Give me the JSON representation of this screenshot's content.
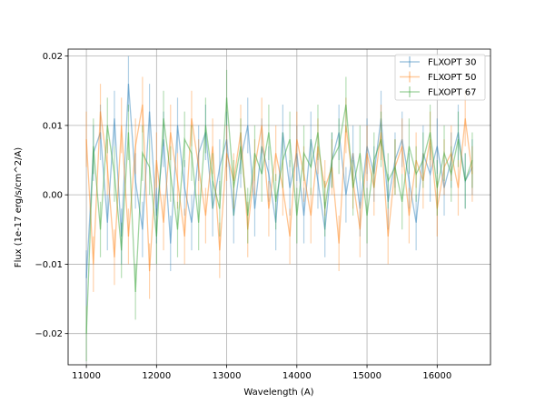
{
  "chart_data": {
    "type": "line",
    "title": "",
    "xlabel": "Wavelength (A)",
    "ylabel": "Flux (1e-17 erg/s/cm^2/A)",
    "xlim": [
      10740,
      16760
    ],
    "ylim": [
      -0.0245,
      0.021
    ],
    "xticks": [
      11000,
      12000,
      13000,
      14000,
      15000,
      16000
    ],
    "xtick_labels": [
      "11000",
      "12000",
      "13000",
      "14000",
      "15000",
      "16000"
    ],
    "yticks": [
      -0.02,
      -0.01,
      0.0,
      0.01,
      0.02
    ],
    "ytick_labels": [
      "−0.02",
      "−0.01",
      "0.00",
      "0.01",
      "0.02"
    ],
    "grid": true,
    "legend_position": "top-right",
    "x_start": 11000,
    "x_step": 100,
    "series": [
      {
        "name": "FLXOPT 30",
        "color": "#1f77b4",
        "yerr": 0.004,
        "values": [
          -0.012,
          0.006,
          0.009,
          -0.004,
          0.011,
          -0.006,
          0.016,
          0.002,
          -0.005,
          0.012,
          -0.003,
          0.008,
          -0.007,
          0.01,
          0.001,
          -0.004,
          0.006,
          0.009,
          -0.002,
          0.004,
          0.008,
          -0.003,
          0.005,
          0.01,
          -0.002,
          0.007,
          0.003,
          -0.004,
          0.009,
          0.001,
          0.006,
          -0.003,
          0.008,
          0.002,
          -0.005,
          0.005,
          0.009,
          0.0,
          0.006,
          -0.002,
          0.007,
          0.003,
          0.011,
          -0.001,
          0.005,
          0.008,
          0.002,
          -0.004,
          0.006,
          0.003,
          0.007,
          0.001,
          0.005,
          0.009,
          0.002,
          0.004
        ]
      },
      {
        "name": "FLXOPT 50",
        "color": "#ff7f0e",
        "yerr": 0.004,
        "values": [
          0.008,
          -0.01,
          0.012,
          0.004,
          -0.009,
          0.01,
          -0.006,
          0.007,
          0.013,
          -0.011,
          0.005,
          -0.004,
          0.009,
          0.002,
          -0.006,
          0.011,
          0.004,
          -0.003,
          0.007,
          -0.008,
          0.006,
          0.002,
          0.009,
          -0.005,
          0.004,
          0.01,
          -0.002,
          0.006,
          0.001,
          -0.006,
          0.008,
          0.003,
          -0.003,
          0.007,
          0.001,
          0.004,
          -0.007,
          0.01,
          0.002,
          -0.005,
          0.006,
          0.001,
          0.009,
          -0.006,
          0.004,
          0.007,
          -0.003,
          0.005,
          0.002,
          0.008,
          -0.002,
          0.004,
          0.006,
          0.001,
          0.011,
          0.003
        ]
      },
      {
        "name": "FLXOPT 67",
        "color": "#2ca02c",
        "yerr": 0.004,
        "values": [
          -0.02,
          0.007,
          -0.005,
          0.01,
          0.003,
          -0.008,
          0.009,
          -0.014,
          0.006,
          0.004,
          -0.006,
          0.011,
          0.003,
          -0.005,
          0.008,
          0.006,
          -0.004,
          0.01,
          0.002,
          -0.002,
          0.014,
          0.001,
          0.007,
          -0.003,
          0.006,
          0.003,
          0.009,
          -0.001,
          0.005,
          0.008,
          -0.003,
          0.006,
          0.004,
          0.009,
          -0.002,
          0.005,
          0.007,
          0.013,
          0.001,
          0.006,
          -0.003,
          0.005,
          0.008,
          0.002,
          0.004,
          -0.001,
          0.007,
          0.003,
          0.005,
          0.009,
          0.001,
          0.006,
          0.003,
          0.008,
          0.002,
          0.005
        ]
      }
    ]
  }
}
